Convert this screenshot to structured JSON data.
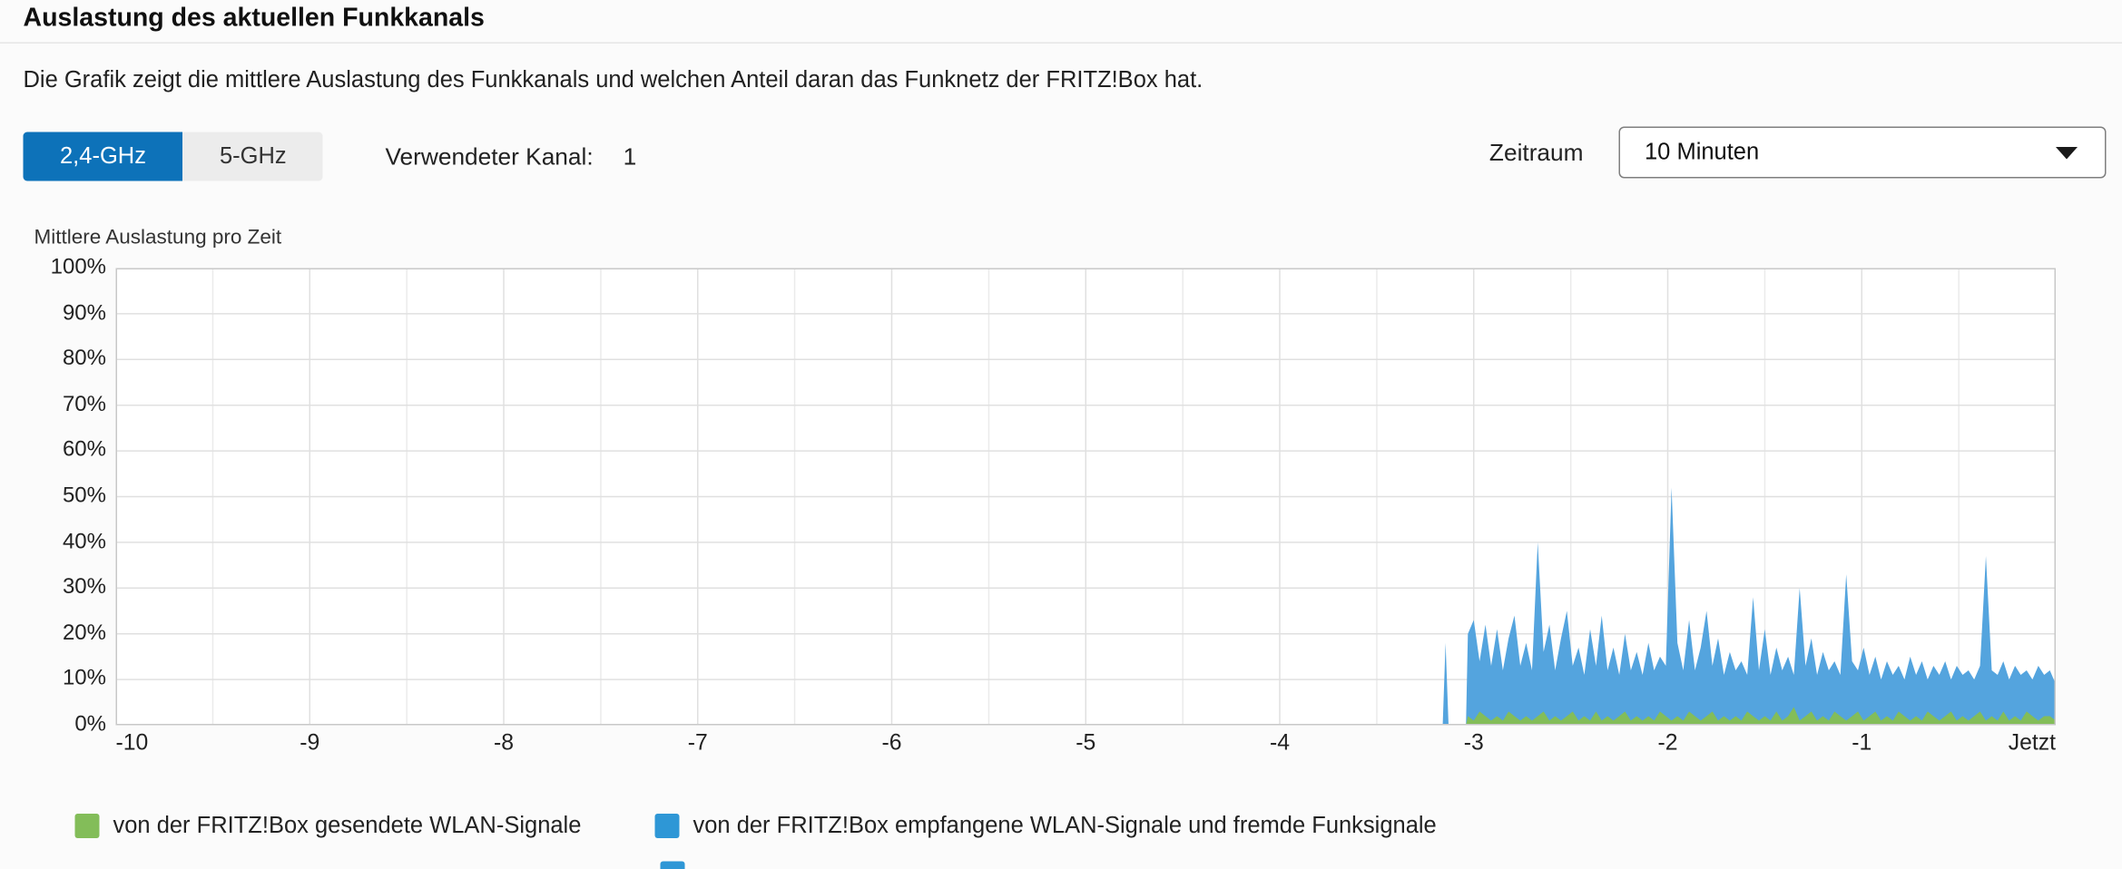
{
  "page": {
    "title": "Auslastung des aktuellen Funkkanals",
    "description": "Die Grafik zeigt die mittlere Auslastung des Funkkanals und welchen Anteil daran das Funknetz der FRITZ!Box hat."
  },
  "colors": {
    "accent": "#0d72b9",
    "tab_inactive_bg": "#ececec",
    "chart_green": "#83bd59",
    "chart_blue": "#54a4de",
    "grid": "#e0e0e0",
    "plot_border": "#c8c8c8"
  },
  "controls": {
    "band_tabs": [
      {
        "label": "2,4-GHz",
        "active": true
      },
      {
        "label": "5-GHz",
        "active": false
      }
    ],
    "channel_label": "Verwendeter Kanal:",
    "channel_value": "1",
    "zeitraum_label": "Zeitraum",
    "zeitraum_value": "10 Minuten"
  },
  "icons": {
    "zeitraum_dropdown": "chevron-down"
  },
  "legend": {
    "items": [
      {
        "color": "#83bd59",
        "label": "von der FRITZ!Box gesendete WLAN-Signale"
      },
      {
        "color": "#2e97d6",
        "label": "von der FRITZ!Box empfangene WLAN-Signale und fremde Funksignale"
      }
    ]
  },
  "chart_data": {
    "type": "area",
    "title": "Mittlere Auslastung pro Zeit",
    "xlim": [
      -10,
      0
    ],
    "ylim": [
      0,
      100
    ],
    "grid": true,
    "x_ticks": {
      "values": [
        -10,
        -9,
        -8,
        -7,
        -6,
        -5,
        -4,
        -3,
        -2,
        -1,
        0
      ],
      "labels": [
        "-10",
        "-9",
        "-8",
        "-7",
        "-6",
        "-5",
        "-4",
        "-3",
        "-2",
        "-1",
        "Jetzt"
      ]
    },
    "y_ticks": {
      "values": [
        100,
        90,
        80,
        70,
        60,
        50,
        40,
        30,
        20,
        10,
        0
      ],
      "labels": [
        "100%",
        "90%",
        "80%",
        "70%",
        "60%",
        "50%",
        "40%",
        "30%",
        "20%",
        "10%",
        "0%"
      ]
    },
    "x": [
      -3.16,
      -3.145,
      -3.13,
      -3.04,
      -3.03,
      -3.0,
      -2.97,
      -2.94,
      -2.91,
      -2.88,
      -2.85,
      -2.82,
      -2.79,
      -2.76,
      -2.73,
      -2.7,
      -2.67,
      -2.64,
      -2.61,
      -2.58,
      -2.55,
      -2.52,
      -2.49,
      -2.46,
      -2.43,
      -2.4,
      -2.37,
      -2.34,
      -2.31,
      -2.28,
      -2.25,
      -2.22,
      -2.19,
      -2.16,
      -2.13,
      -2.1,
      -2.07,
      -2.04,
      -2.01,
      -1.98,
      -1.95,
      -1.92,
      -1.89,
      -1.86,
      -1.83,
      -1.8,
      -1.77,
      -1.74,
      -1.71,
      -1.68,
      -1.65,
      -1.62,
      -1.59,
      -1.56,
      -1.53,
      -1.5,
      -1.47,
      -1.44,
      -1.41,
      -1.38,
      -1.35,
      -1.32,
      -1.29,
      -1.26,
      -1.23,
      -1.2,
      -1.17,
      -1.14,
      -1.11,
      -1.08,
      -1.05,
      -1.02,
      -0.99,
      -0.96,
      -0.93,
      -0.9,
      -0.87,
      -0.84,
      -0.81,
      -0.78,
      -0.75,
      -0.72,
      -0.69,
      -0.66,
      -0.63,
      -0.6,
      -0.57,
      -0.54,
      -0.51,
      -0.48,
      -0.45,
      -0.42,
      -0.39,
      -0.36,
      -0.33,
      -0.3,
      -0.27,
      -0.24,
      -0.21,
      -0.18,
      -0.15,
      -0.12,
      -0.09,
      -0.06,
      -0.03,
      0
    ],
    "series": [
      {
        "name": "von der FRITZ!Box gesendete WLAN-Signale",
        "color": "#83bd59",
        "values": [
          0,
          0,
          0,
          0,
          2,
          1,
          3,
          2,
          1,
          2,
          1,
          3,
          2,
          1,
          2,
          1,
          2,
          3,
          1,
          2,
          1,
          2,
          3,
          1,
          2,
          1,
          3,
          1,
          2,
          1,
          2,
          3,
          1,
          2,
          1,
          2,
          1,
          3,
          2,
          1,
          2,
          1,
          3,
          2,
          1,
          2,
          3,
          1,
          2,
          1,
          2,
          1,
          3,
          2,
          1,
          2,
          1,
          3,
          1,
          2,
          4,
          1,
          2,
          3,
          1,
          2,
          1,
          3,
          2,
          1,
          2,
          3,
          1,
          2,
          3,
          1,
          2,
          1,
          3,
          2,
          1,
          2,
          1,
          3,
          2,
          1,
          2,
          3,
          1,
          2,
          1,
          2,
          3,
          1,
          2,
          1,
          3,
          1,
          2,
          1,
          3,
          2,
          1,
          2,
          2,
          1
        ]
      },
      {
        "name": "von der FRITZ!Box empfangene WLAN-Signale und fremde Funksignale",
        "color": "#54a4de",
        "values": [
          0,
          18,
          0,
          0,
          20,
          23,
          14,
          22,
          13,
          21,
          12,
          19,
          24,
          13,
          18,
          12,
          40,
          16,
          22,
          12,
          19,
          25,
          13,
          17,
          11,
          21,
          13,
          24,
          12,
          17,
          11,
          20,
          12,
          16,
          11,
          18,
          12,
          15,
          13,
          52,
          18,
          12,
          23,
          12,
          17,
          25,
          13,
          19,
          11,
          16,
          12,
          14,
          11,
          28,
          12,
          21,
          11,
          17,
          12,
          15,
          11,
          30,
          13,
          19,
          11,
          16,
          12,
          14,
          11,
          33,
          14,
          12,
          17,
          11,
          15,
          10,
          14,
          11,
          13,
          10,
          15,
          11,
          14,
          10,
          13,
          11,
          14,
          10,
          13,
          11,
          12,
          10,
          13,
          37,
          12,
          11,
          14,
          10,
          13,
          11,
          12,
          10,
          13,
          11,
          12,
          9
        ]
      }
    ]
  }
}
